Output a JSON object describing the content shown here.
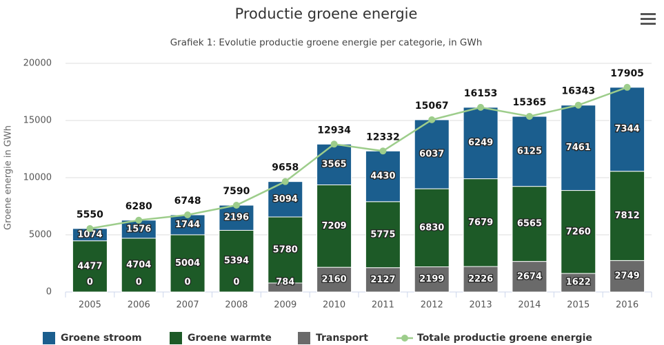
{
  "chart_data": {
    "type": "bar",
    "stacked": true,
    "title": "Productie groene energie",
    "subtitle": "Grafiek 1: Evolutie productie groene energie per categorie, in GWh",
    "y_label": "Groene energie in GWh",
    "categories": [
      "2005",
      "2006",
      "2007",
      "2008",
      "2009",
      "2010",
      "2011",
      "2012",
      "2013",
      "2014",
      "2015",
      "2016"
    ],
    "series": [
      {
        "name": "Groene stroom",
        "color": "#1b5e8e",
        "values": [
          1074,
          1576,
          1744,
          2196,
          3094,
          3565,
          4430,
          6037,
          6249,
          6125,
          7461,
          7344
        ]
      },
      {
        "name": "Groene warmte",
        "color": "#1d5a27",
        "values": [
          4477,
          4704,
          5004,
          5394,
          5780,
          7209,
          5775,
          6830,
          7679,
          6565,
          7260,
          7812
        ]
      },
      {
        "name": "Transport",
        "color": "#6a6a6a",
        "values": [
          0,
          0,
          0,
          0,
          784,
          2160,
          2127,
          2199,
          2226,
          2674,
          1622,
          2749
        ]
      },
      {
        "name": "Totale productie groene energie",
        "type": "line",
        "color": "#9dcd8b",
        "values": [
          5550,
          6280,
          6748,
          7590,
          9658,
          12934,
          12332,
          15067,
          16153,
          15365,
          16343,
          17905
        ]
      }
    ],
    "ylim": [
      0,
      20000
    ],
    "yticks": [
      0,
      5000,
      10000,
      15000,
      20000
    ],
    "grid": true,
    "legend": "bottom"
  }
}
